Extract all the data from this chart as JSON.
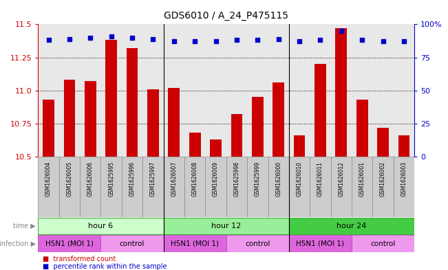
{
  "title": "GDS6010 / A_24_P475115",
  "samples": [
    "GSM1626004",
    "GSM1626005",
    "GSM1626006",
    "GSM1625995",
    "GSM1625996",
    "GSM1625997",
    "GSM1626007",
    "GSM1626008",
    "GSM1626009",
    "GSM1625998",
    "GSM1625999",
    "GSM1626000",
    "GSM1626010",
    "GSM1626011",
    "GSM1626012",
    "GSM1626001",
    "GSM1626002",
    "GSM1626003"
  ],
  "transformed_counts": [
    10.93,
    11.08,
    11.07,
    11.38,
    11.32,
    11.01,
    11.02,
    10.68,
    10.63,
    10.82,
    10.95,
    11.06,
    10.66,
    11.2,
    11.47,
    10.93,
    10.72,
    10.66
  ],
  "percentile_ranks": [
    88,
    89,
    90,
    91,
    90,
    89,
    87,
    87,
    87,
    88,
    88,
    89,
    87,
    88,
    95,
    88,
    87,
    87
  ],
  "ylim_left": [
    10.5,
    11.5
  ],
  "ylim_right": [
    0,
    100
  ],
  "yticks_left": [
    10.5,
    10.75,
    11.0,
    11.25,
    11.5
  ],
  "yticks_right": [
    0,
    25,
    50,
    75,
    100
  ],
  "bar_color": "#cc0000",
  "dot_color": "#0000cc",
  "bar_bottom": 10.5,
  "time_groups": [
    {
      "label": "hour 6",
      "start": 0,
      "end": 6,
      "color": "#ccffcc"
    },
    {
      "label": "hour 12",
      "start": 6,
      "end": 12,
      "color": "#99ee99"
    },
    {
      "label": "hour 24",
      "start": 12,
      "end": 18,
      "color": "#44cc44"
    }
  ],
  "inf_groups": [
    {
      "label": "H5N1 (MOI 1)",
      "start": 0,
      "end": 3,
      "color": "#dd66dd"
    },
    {
      "label": "control",
      "start": 3,
      "end": 6,
      "color": "#ee99ee"
    },
    {
      "label": "H5N1 (MOI 1)",
      "start": 6,
      "end": 9,
      "color": "#dd66dd"
    },
    {
      "label": "control",
      "start": 9,
      "end": 12,
      "color": "#ee99ee"
    },
    {
      "label": "H5N1 (MOI 1)",
      "start": 12,
      "end": 15,
      "color": "#dd66dd"
    },
    {
      "label": "control",
      "start": 15,
      "end": 18,
      "color": "#ee99ee"
    }
  ],
  "time_label": "time",
  "infection_label": "infection",
  "legend1": "transformed count",
  "legend2": "percentile rank within the sample",
  "sample_box_color": "#cccccc",
  "sample_box_edge": "#888888",
  "plot_bg": "#ffffff",
  "left_axis_color": "#cc0000",
  "right_axis_color": "#0000cc",
  "grid_color": "#000000",
  "sep_color": "#000000",
  "label_color": "#888888"
}
